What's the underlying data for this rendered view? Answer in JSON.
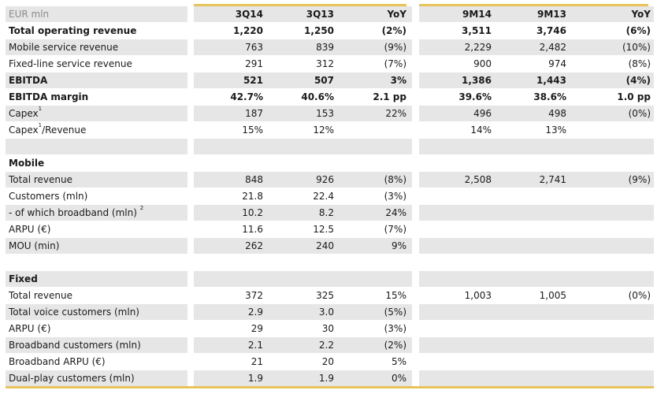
{
  "header": {
    "unit": "EUR mln",
    "cols": [
      "3Q14",
      "3Q13",
      "YoY",
      "9M14",
      "9M13",
      "YoY"
    ]
  },
  "rows": [
    {
      "label": "Total operating revenue",
      "vals": [
        "1,220",
        "1,250",
        "(2%)",
        "3,511",
        "3,746",
        "(6%)"
      ],
      "bold": true
    },
    {
      "label": "Mobile service revenue",
      "vals": [
        "763",
        "839",
        "(9%)",
        "2,229",
        "2,482",
        "(10%)"
      ]
    },
    {
      "label": "Fixed-line service revenue",
      "vals": [
        "291",
        "312",
        "(7%)",
        "900",
        "974",
        "(8%)"
      ]
    },
    {
      "label": "EBITDA",
      "vals": [
        "521",
        "507",
        "3%",
        "1,386",
        "1,443",
        "(4%)"
      ],
      "bold": true
    },
    {
      "label": "EBITDA margin",
      "vals": [
        "42.7%",
        "40.6%",
        "2.1 pp",
        "39.6%",
        "38.6%",
        "1.0 pp"
      ],
      "bold": true
    },
    {
      "label": "Capex",
      "sup": "1",
      "label_after": "",
      "vals": [
        "187",
        "153",
        "22%",
        "496",
        "498",
        "(0%)"
      ]
    },
    {
      "label": "Capex",
      "sup": "1",
      "label_after": "/Revenue",
      "vals": [
        "15%",
        "12%",
        "",
        "14%",
        "13%",
        ""
      ]
    },
    {
      "label": "",
      "vals": [
        "",
        "",
        "",
        "",
        "",
        ""
      ]
    },
    {
      "label": "Mobile",
      "vals": [
        "",
        "",
        "",
        "",
        "",
        ""
      ],
      "bold": true
    },
    {
      "label": "Total revenue",
      "vals": [
        "848",
        "926",
        "(8%)",
        "2,508",
        "2,741",
        "(9%)"
      ]
    },
    {
      "label": "Customers (mln)",
      "vals": [
        "21.8",
        "22.4",
        "(3%)",
        "",
        "",
        ""
      ]
    },
    {
      "label": "- of which broadband (mln) ",
      "sup": "2",
      "label_after": "",
      "vals": [
        "10.2",
        "8.2",
        "24%",
        "",
        "",
        ""
      ]
    },
    {
      "label": "ARPU (€)",
      "vals": [
        "11.6",
        "12.5",
        "(7%)",
        "",
        "",
        ""
      ]
    },
    {
      "label": "MOU (min)",
      "vals": [
        "262",
        "240",
        "9%",
        "",
        "",
        ""
      ]
    },
    {
      "label": "",
      "vals": [
        "",
        "",
        "",
        "",
        "",
        ""
      ]
    },
    {
      "label": "Fixed",
      "vals": [
        "",
        "",
        "",
        "",
        "",
        ""
      ],
      "bold": true
    },
    {
      "label": "Total revenue",
      "vals": [
        "372",
        "325",
        "15%",
        "1,003",
        "1,005",
        "(0%)"
      ]
    },
    {
      "label": "Total voice customers (mln)",
      "vals": [
        "2.9",
        "3.0",
        "(5%)",
        "",
        "",
        ""
      ]
    },
    {
      "label": "ARPU (€)",
      "vals": [
        "29",
        "30",
        "(3%)",
        "",
        "",
        ""
      ]
    },
    {
      "label": "Broadband customers (mln)",
      "vals": [
        "2.1",
        "2.2",
        "(2%)",
        "",
        "",
        ""
      ]
    },
    {
      "label": "Broadband ARPU (€)",
      "vals": [
        "21",
        "20",
        "5%",
        "",
        "",
        ""
      ]
    },
    {
      "label": "Dual-play customers (mln)",
      "vals": [
        "1.9",
        "1.9",
        "0%",
        "",
        "",
        ""
      ]
    }
  ]
}
